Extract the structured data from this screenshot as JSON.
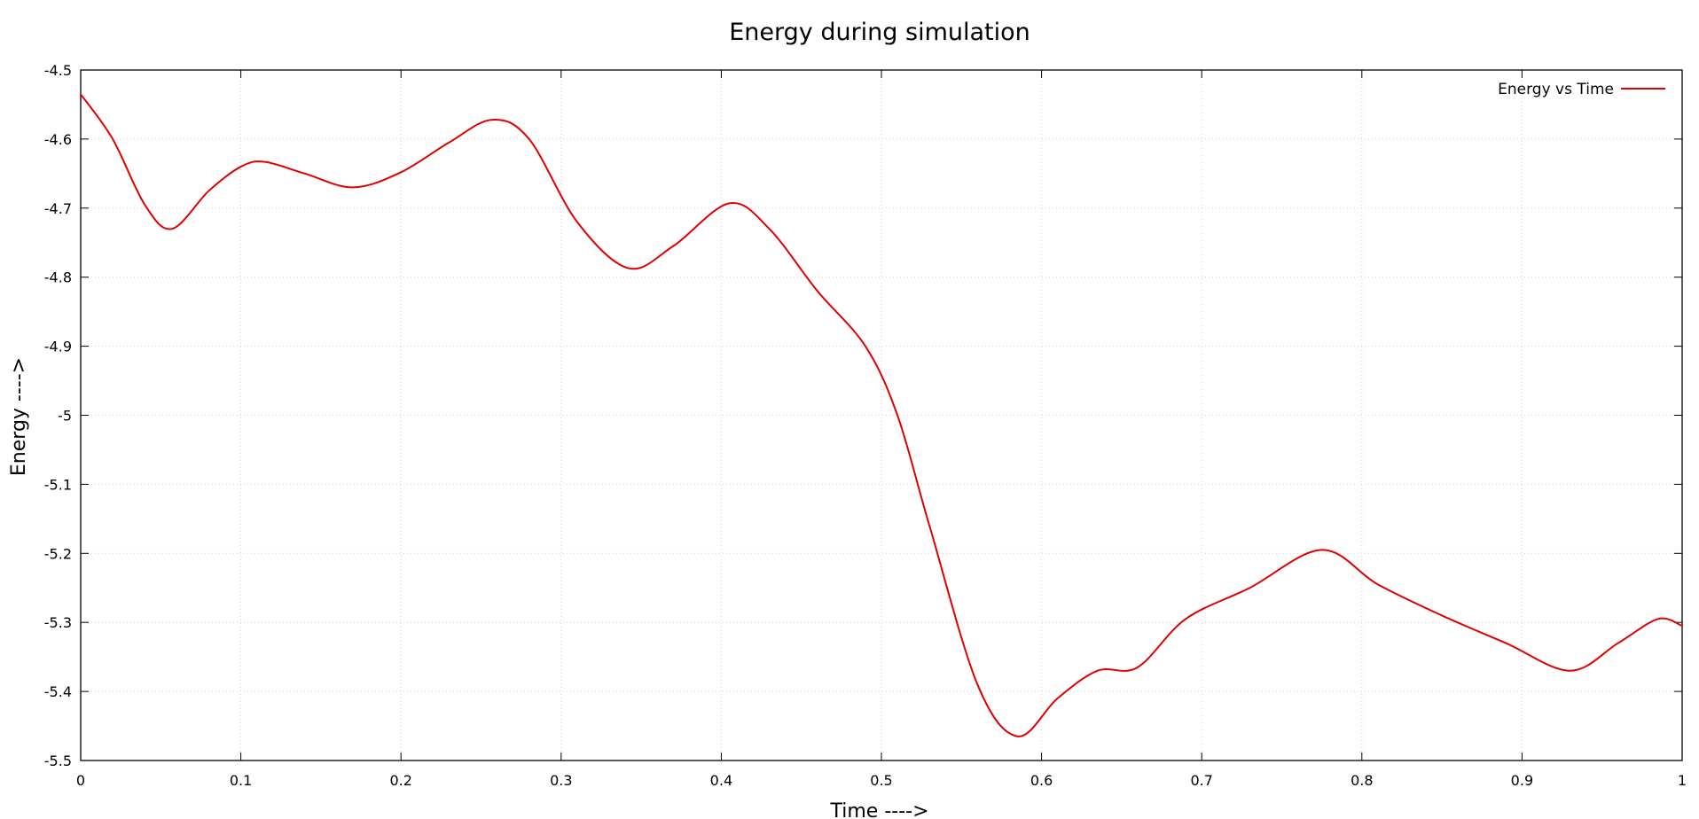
{
  "chart_data": {
    "type": "line",
    "title": "Energy during simulation",
    "xlabel": "Time ---->",
    "ylabel": "Energy ---->",
    "xlim": [
      0,
      1
    ],
    "ylim": [
      -5.5,
      -4.5
    ],
    "x_ticks": [
      0,
      0.1,
      0.2,
      0.3,
      0.4,
      0.5,
      0.6,
      0.7,
      0.8,
      0.9,
      1
    ],
    "x_tick_labels": [
      "0",
      "0.1",
      "0.2",
      "0.3",
      "0.4",
      "0.5",
      "0.6",
      "0.7",
      "0.8",
      "0.9",
      "1"
    ],
    "y_ticks": [
      -4.5,
      -4.6,
      -4.7,
      -4.8,
      -4.9,
      -5,
      -5.1,
      -5.2,
      -5.3,
      -5.4,
      -5.5
    ],
    "y_tick_labels": [
      "-4.5",
      "-4.6",
      "-4.7",
      "-4.8",
      "-4.9",
      "-5",
      "-5.1",
      "-5.2",
      "-5.3",
      "-5.4",
      "-5.5"
    ],
    "grid": true,
    "legend_position": "top-right",
    "series": [
      {
        "name": "Energy vs Time",
        "color": "#e00000",
        "x": [
          0,
          0.02,
          0.04,
          0.057,
          0.08,
          0.1,
          0.115,
          0.14,
          0.17,
          0.2,
          0.23,
          0.257,
          0.28,
          0.31,
          0.342,
          0.37,
          0.405,
          0.43,
          0.46,
          0.49,
          0.51,
          0.53,
          0.56,
          0.585,
          0.61,
          0.635,
          0.66,
          0.69,
          0.73,
          0.775,
          0.81,
          0.85,
          0.89,
          0.93,
          0.96,
          0.985,
          1
        ],
        "y": [
          -4.535,
          -4.6,
          -4.695,
          -4.73,
          -4.675,
          -4.64,
          -4.633,
          -4.65,
          -4.67,
          -4.648,
          -4.605,
          -4.572,
          -4.6,
          -4.72,
          -4.787,
          -4.755,
          -4.693,
          -4.73,
          -4.82,
          -4.9,
          -5.0,
          -5.16,
          -5.39,
          -5.465,
          -5.41,
          -5.37,
          -5.365,
          -5.295,
          -5.25,
          -5.195,
          -5.245,
          -5.29,
          -5.33,
          -5.37,
          -5.33,
          -5.295,
          -5.305
        ]
      }
    ]
  }
}
